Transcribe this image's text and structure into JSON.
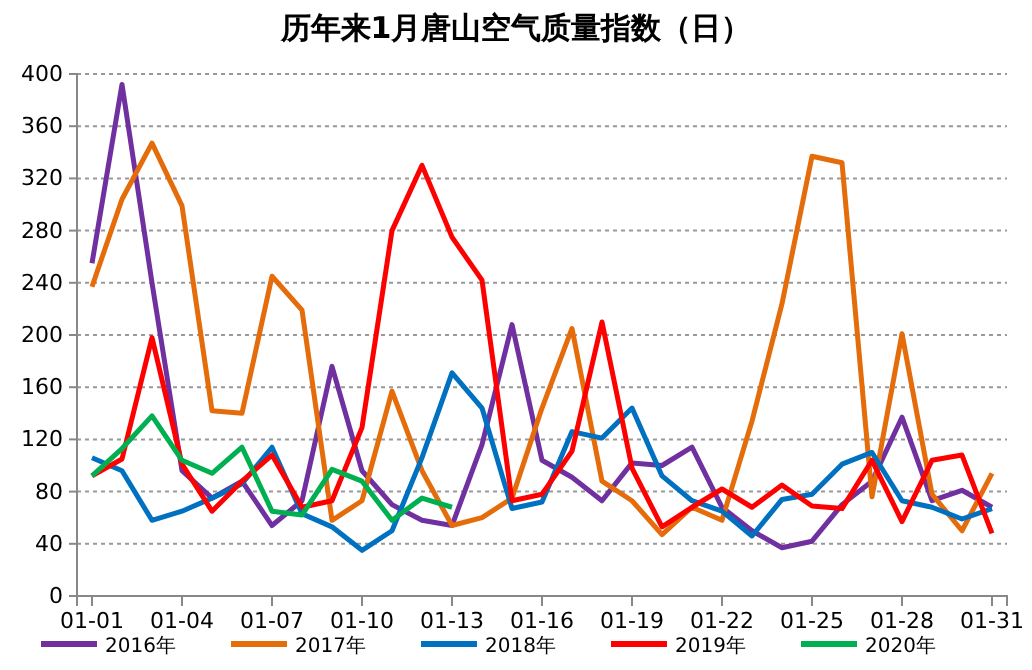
{
  "chart_data": {
    "type": "line",
    "title": "历年来1月唐山空气质量指数（日）",
    "categories": [
      "01-01",
      null,
      null,
      "01-04",
      null,
      null,
      "01-07",
      null,
      null,
      "01-10",
      null,
      null,
      "01-13",
      null,
      null,
      "01-16",
      null,
      null,
      "01-19",
      null,
      null,
      "01-22",
      null,
      null,
      "01-25",
      null,
      null,
      "01-28",
      null,
      null,
      "01-31"
    ],
    "ylim": [
      0,
      400
    ],
    "yticks": [
      0,
      40,
      80,
      120,
      160,
      200,
      240,
      280,
      320,
      360,
      400
    ],
    "grid": "y",
    "legend": "bottom",
    "marker": "none",
    "line_style": "solid",
    "series": [
      {
        "name": "2016年",
        "color": "#7030a0",
        "values": [
          255,
          392,
          240,
          96,
          75,
          88,
          54,
          73,
          176,
          96,
          70,
          58,
          54,
          116,
          208,
          104,
          91,
          73,
          102,
          100,
          114,
          68,
          50,
          37,
          42,
          70,
          88,
          137,
          73,
          81,
          68
        ]
      },
      {
        "name": "2017年",
        "color": "#e46c0a",
        "values": [
          237,
          304,
          347,
          299,
          142,
          140,
          245,
          219,
          58,
          73,
          157,
          96,
          54,
          60,
          75,
          144,
          205,
          88,
          73,
          47,
          68,
          58,
          134,
          224,
          337,
          332,
          76,
          201,
          78,
          50,
          94
        ]
      },
      {
        "name": "2018年",
        "color": "#0070c0",
        "values": [
          106,
          96,
          58,
          65,
          75,
          86,
          114,
          63,
          53,
          35,
          50,
          106,
          171,
          144,
          67,
          72,
          126,
          121,
          144,
          92,
          73,
          65,
          46,
          74,
          78,
          101,
          110,
          73,
          68,
          59,
          67
        ]
      },
      {
        "name": "2019年",
        "color": "#ff0000",
        "values": [
          92,
          105,
          198,
          101,
          65,
          88,
          108,
          68,
          73,
          129,
          280,
          330,
          275,
          242,
          73,
          78,
          111,
          210,
          98,
          53,
          68,
          82,
          68,
          85,
          69,
          67,
          104,
          57,
          104,
          108,
          48
        ]
      },
      {
        "name": "2020年",
        "color": "#00b050",
        "values": [
          92,
          113,
          138,
          104,
          94,
          114,
          65,
          62,
          97,
          88,
          58,
          75,
          68,
          null,
          null,
          null,
          null,
          null,
          null,
          null,
          null,
          null,
          null,
          null,
          null,
          null,
          null,
          null,
          null,
          null,
          null
        ]
      }
    ]
  }
}
